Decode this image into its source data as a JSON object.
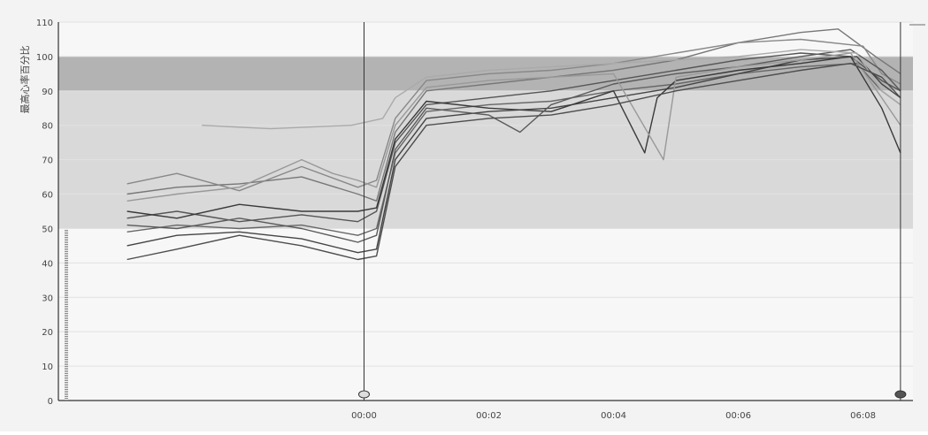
{
  "chart_data": {
    "type": "line",
    "title": "",
    "ylabel": "最高心率百分比",
    "xlabel": "",
    "ylim": [
      0,
      110
    ],
    "xlim": [
      -4.9,
      8.8
    ],
    "y_ticks": [
      "0",
      "10",
      "20",
      "30",
      "40",
      "50",
      "60",
      "70",
      "80",
      "90",
      "100",
      "110"
    ],
    "x_ticks": [
      {
        "value": 0,
        "label": "00:00"
      },
      {
        "value": 2,
        "label": "00:02"
      },
      {
        "value": 4,
        "label": "00:04"
      },
      {
        "value": 6,
        "label": "00:06"
      },
      {
        "value": 8,
        "label": "06:08"
      }
    ],
    "zones": [
      {
        "from": 50,
        "to": 90,
        "color": "#d9d9d9"
      },
      {
        "from": 90,
        "to": 100,
        "color": "#b3b3b3"
      }
    ],
    "markers": [
      {
        "x": 0,
        "label": ""
      },
      {
        "x": 8.6,
        "label": ""
      }
    ],
    "grid": true,
    "legend": "none",
    "series": [
      {
        "color": "#555555",
        "points": [
          [
            -3.8,
            53
          ],
          [
            -3,
            55
          ],
          [
            -2,
            52
          ],
          [
            -1,
            54
          ],
          [
            -0.1,
            52
          ],
          [
            0.2,
            55
          ],
          [
            0.5,
            75
          ],
          [
            1,
            86
          ],
          [
            2,
            88
          ],
          [
            3,
            90
          ],
          [
            4,
            93
          ],
          [
            5,
            96
          ],
          [
            6,
            99
          ],
          [
            7,
            101
          ],
          [
            7.8,
            100
          ],
          [
            8.3,
            93
          ],
          [
            8.6,
            90
          ]
        ]
      },
      {
        "color": "#666666",
        "points": [
          [
            -3.8,
            49
          ],
          [
            -3,
            51
          ],
          [
            -2,
            50
          ],
          [
            -1,
            51
          ],
          [
            -0.1,
            48
          ],
          [
            0.2,
            50
          ],
          [
            0.5,
            72
          ],
          [
            1,
            84
          ],
          [
            2,
            86
          ],
          [
            3,
            87
          ],
          [
            4,
            90
          ],
          [
            5,
            92
          ],
          [
            6,
            95
          ],
          [
            7,
            97
          ],
          [
            7.9,
            98
          ],
          [
            8.3,
            90
          ],
          [
            8.6,
            86
          ]
        ]
      },
      {
        "color": "#777777",
        "points": [
          [
            -3.8,
            60
          ],
          [
            -3,
            62
          ],
          [
            -2,
            63
          ],
          [
            -1,
            65
          ],
          [
            -0.1,
            60
          ],
          [
            0.2,
            58
          ],
          [
            0.5,
            78
          ],
          [
            1,
            90
          ],
          [
            2,
            92
          ],
          [
            3,
            94
          ],
          [
            4,
            96
          ],
          [
            5,
            99
          ],
          [
            6,
            104
          ],
          [
            7,
            107
          ],
          [
            7.6,
            108
          ],
          [
            8.2,
            100
          ],
          [
            8.6,
            95
          ]
        ]
      },
      {
        "color": "#444444",
        "points": [
          [
            -3.8,
            45
          ],
          [
            -3,
            48
          ],
          [
            -2,
            49
          ],
          [
            -1,
            47
          ],
          [
            -0.1,
            43
          ],
          [
            0.2,
            44
          ],
          [
            0.5,
            70
          ],
          [
            1,
            82
          ],
          [
            2,
            84
          ],
          [
            3,
            85
          ],
          [
            4,
            88
          ],
          [
            5,
            91
          ],
          [
            6,
            95
          ],
          [
            7,
            99
          ],
          [
            7.9,
            100
          ],
          [
            8.3,
            92
          ],
          [
            8.6,
            88
          ]
        ]
      },
      {
        "color": "#888888",
        "points": [
          [
            -3.8,
            63
          ],
          [
            -3,
            66
          ],
          [
            -2,
            61
          ],
          [
            -1,
            68
          ],
          [
            -0.1,
            62
          ],
          [
            0.2,
            64
          ],
          [
            0.5,
            82
          ],
          [
            1,
            93
          ],
          [
            2,
            95
          ],
          [
            3,
            96
          ],
          [
            4,
            98
          ],
          [
            5,
            101
          ],
          [
            6,
            104
          ],
          [
            7,
            105
          ],
          [
            8,
            103
          ],
          [
            8.3,
            95
          ],
          [
            8.6,
            92
          ]
        ]
      },
      {
        "color": "#3a3a3a",
        "points": [
          [
            -3.8,
            55
          ],
          [
            -3,
            53
          ],
          [
            -2,
            57
          ],
          [
            -1,
            55
          ],
          [
            -0.1,
            55
          ],
          [
            0.2,
            56
          ],
          [
            0.5,
            76
          ],
          [
            1,
            87
          ],
          [
            2,
            85
          ],
          [
            3,
            84
          ],
          [
            4,
            90
          ],
          [
            4.5,
            72
          ],
          [
            4.7,
            88
          ],
          [
            5,
            93
          ],
          [
            6,
            96
          ],
          [
            7,
            98
          ],
          [
            7.8,
            100
          ],
          [
            8.3,
            85
          ],
          [
            8.6,
            72
          ]
        ]
      },
      {
        "color": "#5a5a5a",
        "points": [
          [
            -3.8,
            51
          ],
          [
            -3,
            50
          ],
          [
            -2,
            53
          ],
          [
            -1,
            50
          ],
          [
            -0.1,
            46
          ],
          [
            0.2,
            48
          ],
          [
            0.5,
            73
          ],
          [
            1,
            85
          ],
          [
            2,
            83
          ],
          [
            2.5,
            78
          ],
          [
            3,
            86
          ],
          [
            4,
            92
          ],
          [
            5,
            95
          ],
          [
            6,
            97
          ],
          [
            7,
            100
          ],
          [
            7.8,
            102
          ],
          [
            8.3,
            96
          ],
          [
            8.6,
            90
          ]
        ]
      },
      {
        "color": "#999999",
        "points": [
          [
            -3.8,
            58
          ],
          [
            -3,
            60
          ],
          [
            -2,
            62
          ],
          [
            -1,
            70
          ],
          [
            -0.5,
            66
          ],
          [
            -0.1,
            64
          ],
          [
            0.2,
            62
          ],
          [
            0.5,
            80
          ],
          [
            1,
            91
          ],
          [
            2,
            93
          ],
          [
            3,
            94
          ],
          [
            4,
            95
          ],
          [
            4.8,
            70
          ],
          [
            5,
            94
          ],
          [
            6,
            97
          ],
          [
            7,
            99
          ],
          [
            7.8,
            101
          ],
          [
            8.3,
            88
          ],
          [
            8.6,
            80
          ]
        ]
      },
      {
        "color": "#aaaaaa",
        "points": [
          [
            -2.6,
            80
          ],
          [
            -1.5,
            79
          ],
          [
            -0.2,
            80
          ],
          [
            0.3,
            82
          ],
          [
            0.5,
            88
          ],
          [
            1,
            94
          ],
          [
            2,
            96
          ],
          [
            3,
            97
          ],
          [
            4,
            98
          ],
          [
            5,
            99
          ],
          [
            6,
            100
          ],
          [
            7,
            102
          ],
          [
            7.9,
            101
          ],
          [
            8.3,
            90
          ],
          [
            8.6,
            86
          ]
        ]
      },
      {
        "color": "#4d4d4d",
        "points": [
          [
            -3.8,
            41
          ],
          [
            -3,
            44
          ],
          [
            -2,
            48
          ],
          [
            -1,
            45
          ],
          [
            -0.1,
            41
          ],
          [
            0.2,
            42
          ],
          [
            0.5,
            68
          ],
          [
            1,
            80
          ],
          [
            2,
            82
          ],
          [
            3,
            83
          ],
          [
            4,
            86
          ],
          [
            5,
            90
          ],
          [
            6,
            93
          ],
          [
            7,
            96
          ],
          [
            7.8,
            98
          ],
          [
            8.3,
            94
          ],
          [
            8.6,
            88
          ]
        ]
      }
    ]
  }
}
